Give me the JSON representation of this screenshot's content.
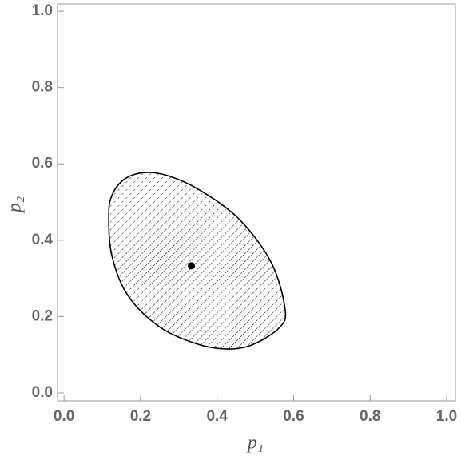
{
  "chart_data": {
    "type": "region",
    "xlabel": "p₁",
    "ylabel": "p₂",
    "xlim": [
      -0.017,
      1.023
    ],
    "ylim": [
      -0.021,
      1.019
    ],
    "xticks": [
      {
        "value": 0,
        "label": "0.0"
      },
      0.2,
      0.4,
      0.6,
      0.8,
      {
        "value": 1,
        "label": "1.0"
      }
    ],
    "yticks": [
      {
        "value": 0,
        "label": "0.0"
      },
      0.2,
      0.4,
      0.6,
      0.8,
      {
        "value": 1,
        "label": "1.0"
      }
    ],
    "region": {
      "color": "#000000",
      "x": [
        0.117,
        0.125,
        0.157,
        0.209,
        0.271,
        0.355,
        0.459,
        0.543,
        0.578,
        0.564,
        0.501,
        0.438,
        0.355,
        0.251,
        0.167,
        0.125
      ],
      "y": [
        0.464,
        0.517,
        0.559,
        0.577,
        0.569,
        0.531,
        0.454,
        0.339,
        0.218,
        0.172,
        0.13,
        0.115,
        0.126,
        0.172,
        0.255,
        0.36
      ]
    },
    "point": {
      "color": "#000000",
      "x": [
        0.333
      ],
      "y": [
        0.333
      ]
    }
  }
}
